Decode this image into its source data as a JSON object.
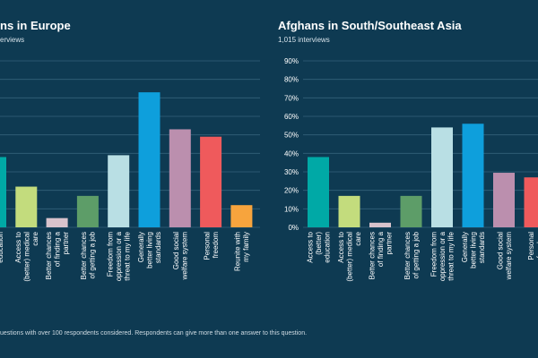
{
  "colors": {
    "background": "#0e3a52",
    "gridline": "#33627b",
    "text": "#ffffff",
    "palette": [
      "#00a9a6",
      "#c3dc7d",
      "#d8c3cc",
      "#5d9d68",
      "#b9dfe4",
      "#0e9fdc",
      "#bb8fae",
      "#ef5a5c",
      "#f7a43d"
    ]
  },
  "footnote": "uestions with over 100 respondents considered. Respondents can give more than one answer to this question.",
  "chart_data": [
    {
      "type": "bar",
      "title": "ns in Europe",
      "subtitle": "erviews",
      "categories": [
        "(better) education",
        "Access to (better) medical care",
        "Better chances of finding a partner",
        "Better chances of getting a job",
        "Freedom from oppression or a threat to my life",
        "Generally better living standards",
        "Good social welfare system",
        "Personal freedom",
        "Reunite with my family"
      ],
      "category_labels": [
        [
          "(better)",
          "education"
        ],
        [
          "Access to",
          "(better) medical",
          "care"
        ],
        [
          "Better chances",
          "of finding a",
          "partner"
        ],
        [
          "Better chances",
          "of getting a job"
        ],
        [
          "Freedom from",
          "oppression or a",
          "threat to my life"
        ],
        [
          "Generally",
          "better living",
          "standards"
        ],
        [
          "Good social",
          "welfare system"
        ],
        [
          "Personal",
          "freedom"
        ],
        [
          "Reunite with",
          "my family"
        ]
      ],
      "values": [
        38,
        22,
        5,
        17,
        39,
        73,
        53,
        49,
        12
      ],
      "ylim": [
        0,
        90
      ],
      "grid": true,
      "colors": [
        "#00a9a6",
        "#c3dc7d",
        "#d8c3cc",
        "#5d9d68",
        "#b9dfe4",
        "#0e9fdc",
        "#bb8fae",
        "#ef5a5c",
        "#f7a43d"
      ]
    },
    {
      "type": "bar",
      "title": "Afghans in South/Southeast Asia",
      "subtitle": "1,015 interviews",
      "categories": [
        "Access to (better) education",
        "Access to (better) medical care",
        "Better chances of finding a partner",
        "Better chances of getting a job",
        "Freedom from oppression or a threat to my life",
        "Generally better living standards",
        "Good social welfare system",
        "Personal freedom"
      ],
      "category_labels": [
        [
          "Access to",
          "(better)",
          "education"
        ],
        [
          "Access to",
          "(better) medical",
          "care"
        ],
        [
          "Better chances",
          "of finding a",
          "partner"
        ],
        [
          "Better chances",
          "of getting a job"
        ],
        [
          "Freedom from",
          "oppression or a",
          "threat to my life"
        ],
        [
          "Generally",
          "better living",
          "standards"
        ],
        [
          "Good social",
          "welfare system"
        ],
        [
          "Personal",
          "freedom"
        ]
      ],
      "values": [
        38,
        17,
        2.5,
        17,
        54,
        56,
        29.5,
        27
      ],
      "ylim": [
        0,
        90
      ],
      "yticks": [
        "0%",
        "10%",
        "20%",
        "30%",
        "40%",
        "50%",
        "60%",
        "70%",
        "80%",
        "90%"
      ],
      "grid": true,
      "colors": [
        "#00a9a6",
        "#c3dc7d",
        "#d8c3cc",
        "#5d9d68",
        "#b9dfe4",
        "#0e9fdc",
        "#bb8fae",
        "#ef5a5c"
      ]
    }
  ]
}
